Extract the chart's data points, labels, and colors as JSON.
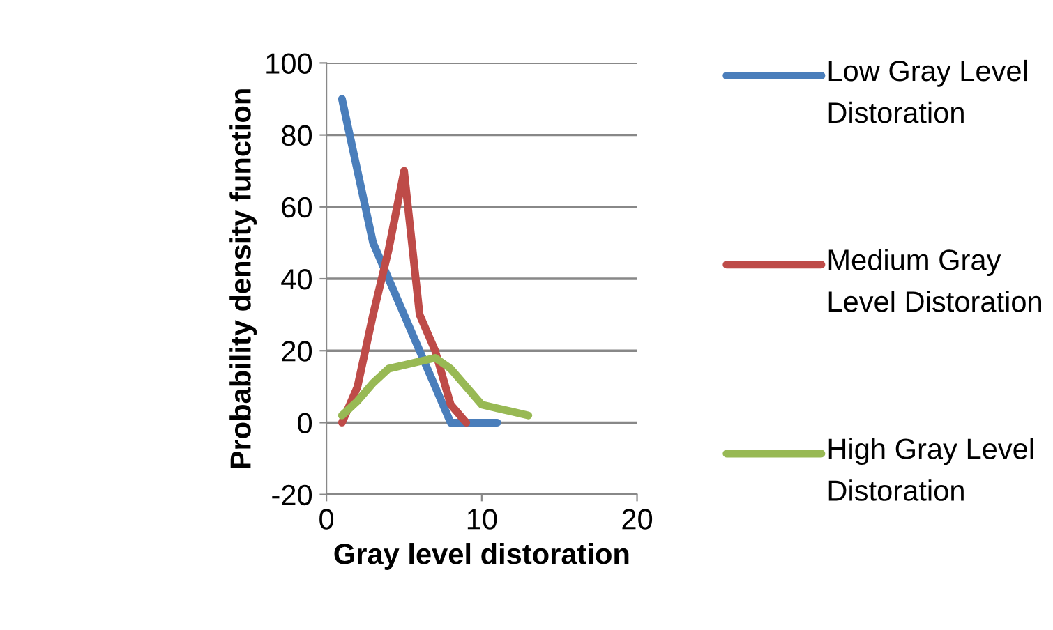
{
  "chart_data": {
    "type": "line",
    "xlabel": "Gray level distoration",
    "ylabel": "Probability density function",
    "xlim": [
      0,
      20
    ],
    "xticks": [
      0,
      10,
      20
    ],
    "ylim": [
      -20,
      100
    ],
    "yticks": [
      -20,
      0,
      20,
      40,
      60,
      80,
      100
    ],
    "grid": "y",
    "legend": "right",
    "marker": "none",
    "line_style": "solid",
    "series": [
      {
        "name": "Low Gray Level Distoration",
        "color": "#4a7ebb",
        "x": [
          1,
          2,
          3,
          4,
          5,
          6,
          7,
          8,
          9,
          10,
          11
        ],
        "values": [
          90,
          70,
          50,
          40,
          30,
          20,
          10,
          0,
          0,
          0,
          0
        ]
      },
      {
        "name": "Medium Gray Level Distoration",
        "color": "#be4b48",
        "x": [
          1,
          2,
          3,
          4,
          5,
          6,
          7,
          8,
          9
        ],
        "values": [
          0,
          10,
          30,
          48,
          70,
          30,
          20,
          5,
          0
        ]
      },
      {
        "name": "High Gray Level Distoration",
        "color": "#98b954",
        "x": [
          1,
          2,
          3,
          4,
          5,
          6,
          7,
          8,
          9,
          10,
          11,
          12,
          13
        ],
        "values": [
          2,
          6,
          11,
          15,
          16,
          17,
          18,
          15,
          10,
          5,
          4,
          3,
          2
        ]
      }
    ]
  }
}
